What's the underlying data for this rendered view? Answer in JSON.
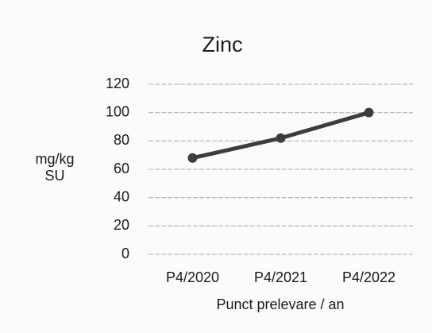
{
  "chart_data": {
    "type": "line",
    "title": "Zinc",
    "ylabel": "mg/kg SU",
    "xlabel": "Punct prelevare / an",
    "categories": [
      "P4/2020",
      "P4/2021",
      "P4/2022"
    ],
    "series": [
      {
        "name": "Zinc",
        "color": "#3d3d3d",
        "values": [
          68,
          82,
          100
        ]
      }
    ],
    "ylim": [
      0,
      120
    ],
    "yticks": [
      0,
      20,
      40,
      60,
      80,
      100,
      120
    ],
    "grid": true
  }
}
